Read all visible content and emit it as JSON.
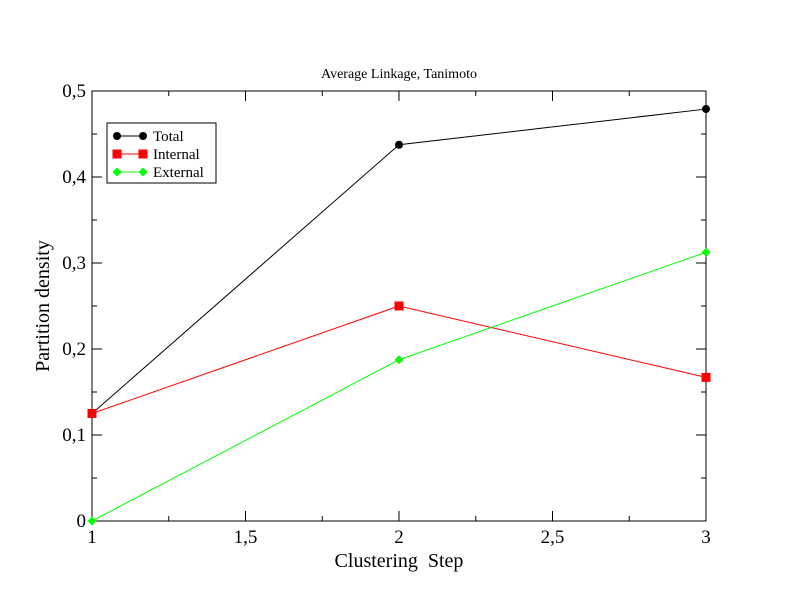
{
  "chart_data": {
    "type": "line",
    "title": "Average Linkage, Tanimoto",
    "xlabel": "Clustering  Step",
    "ylabel": "Partition density",
    "xlim": [
      1,
      3
    ],
    "ylim": [
      0,
      0.5
    ],
    "x_ticks": [
      "1",
      "1,5",
      "2",
      "2,5",
      "3"
    ],
    "y_ticks": [
      "0",
      "0,1",
      "0,2",
      "0,3",
      "0,4",
      "0,5"
    ],
    "grid": false,
    "legend_position": "top-left",
    "x": [
      1,
      2,
      3
    ],
    "series": [
      {
        "name": "Total",
        "values": [
          0.125,
          0.4375,
          0.479
        ],
        "color": "#000000",
        "marker": "circle"
      },
      {
        "name": "Internal",
        "values": [
          0.125,
          0.25,
          0.167
        ],
        "color": "#ff0000",
        "marker": "square"
      },
      {
        "name": "External",
        "values": [
          0.0,
          0.1875,
          0.3125
        ],
        "color": "#00ff00",
        "marker": "diamond"
      }
    ]
  }
}
